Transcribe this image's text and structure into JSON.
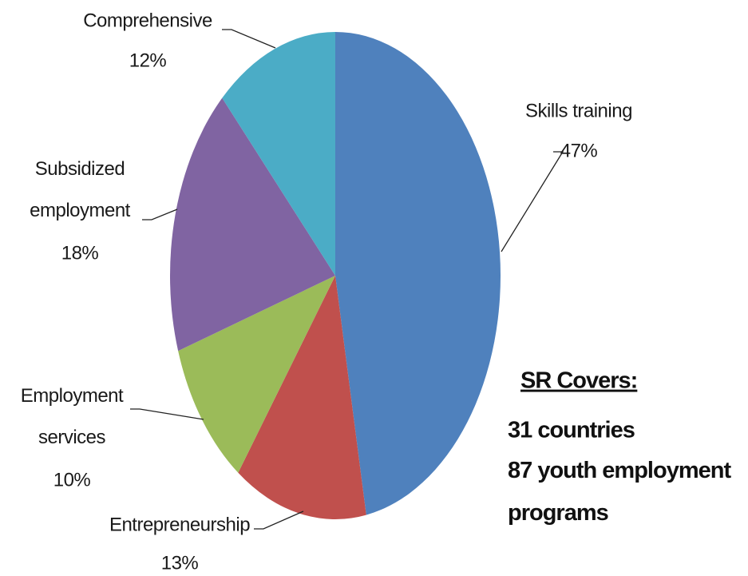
{
  "chart_data": {
    "type": "pie",
    "categories": [
      "Skills training",
      "Entrepreneurship",
      "Employment services",
      "Subsidized employment",
      "Comprehensive"
    ],
    "values": [
      47,
      13,
      10,
      18,
      12
    ],
    "value_labels": [
      "47%",
      "13%",
      "10%",
      "18%",
      "12%"
    ],
    "colors": [
      "#4f81bd",
      "#c0504d",
      "#9bbb59",
      "#8064a2",
      "#4bacc6"
    ],
    "annotation": {
      "heading": "SR Covers:",
      "lines": [
        "31 countries",
        "87 youth employment programs"
      ]
    }
  }
}
